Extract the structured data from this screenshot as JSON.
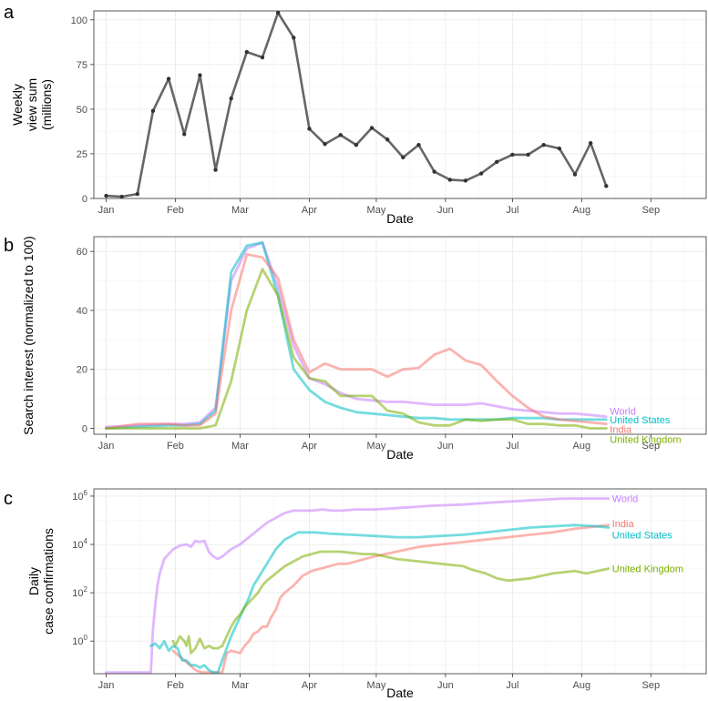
{
  "chart_data": [
    {
      "panel_label": "a",
      "type": "line",
      "title": "",
      "xlabel": "Date",
      "ylabel": [
        "Weekly",
        "view sum",
        "(millions)"
      ],
      "x_ticks": [
        "Jan",
        "Feb",
        "Mar",
        "Apr",
        "May",
        "Jun",
        "Jul",
        "Aug",
        "Sep"
      ],
      "y_ticks": [
        "0",
        "25",
        "50",
        "75",
        "100"
      ],
      "ylim": [
        0,
        105
      ],
      "x_unit": "days since Jan 1",
      "grid": true,
      "series": [
        {
          "name": "Weekly view sum",
          "color": "#666666",
          "x": [
            0,
            7,
            14,
            21,
            28,
            35,
            42,
            49,
            56,
            63,
            70,
            77,
            84,
            91,
            98,
            105,
            112,
            119,
            126,
            133,
            140,
            147,
            154,
            161,
            168,
            175,
            182,
            189,
            196,
            203,
            210,
            217,
            224
          ],
          "y": [
            1.5,
            1,
            2.5,
            49,
            67,
            36,
            69,
            16,
            56,
            82,
            79,
            104,
            90,
            39,
            30.5,
            35.5,
            30,
            39.5,
            33,
            23,
            30,
            15,
            10.5,
            10,
            14,
            20.5,
            24.5,
            24.5,
            30,
            28,
            13.5,
            31,
            7
          ]
        }
      ]
    },
    {
      "panel_label": "b",
      "type": "line",
      "title": "",
      "xlabel": "Date",
      "ylabel": "Search interest (normalized to 100)",
      "x_ticks": [
        "Jan",
        "Feb",
        "Mar",
        "Apr",
        "May",
        "Jun",
        "Jul",
        "Aug",
        "Sep"
      ],
      "y_ticks": [
        "0",
        "20",
        "40",
        "60"
      ],
      "ylim": [
        -2,
        65
      ],
      "x_unit": "days since Jan 1",
      "grid": true,
      "legend": "labels at line ends",
      "series": [
        {
          "name": "World",
          "color": "#C77CFF",
          "x": [
            0,
            14,
            28,
            35,
            42,
            49,
            56,
            63,
            70,
            77,
            84,
            91,
            98,
            105,
            112,
            119,
            126,
            133,
            140,
            147,
            154,
            161,
            168,
            175,
            182,
            189,
            196,
            203,
            210,
            217,
            224
          ],
          "y": [
            0.5,
            1,
            1.5,
            1.5,
            2,
            7,
            50,
            61,
            63,
            48,
            28,
            17,
            15,
            12,
            10,
            9.5,
            9,
            9,
            8.5,
            8,
            8,
            8,
            8.5,
            7.5,
            6.5,
            6,
            5.5,
            5,
            5,
            4.5,
            4
          ]
        },
        {
          "name": "United States",
          "color": "#00BFC4",
          "x": [
            0,
            14,
            28,
            35,
            42,
            49,
            56,
            63,
            70,
            77,
            84,
            91,
            98,
            105,
            112,
            119,
            126,
            133,
            140,
            147,
            154,
            161,
            168,
            175,
            182,
            189,
            196,
            203,
            210,
            217,
            224
          ],
          "y": [
            0,
            0.5,
            1,
            1,
            1.5,
            6,
            53,
            62,
            63,
            45,
            20,
            13,
            9,
            7,
            5.5,
            5,
            4.5,
            4,
            3.5,
            3.5,
            3,
            3,
            3,
            3,
            3.5,
            3.5,
            3.5,
            3,
            3,
            3,
            3
          ]
        },
        {
          "name": "India",
          "color": "#F8766D",
          "x": [
            0,
            14,
            28,
            35,
            42,
            49,
            56,
            63,
            70,
            77,
            84,
            91,
            98,
            105,
            112,
            119,
            126,
            133,
            140,
            147,
            154,
            161,
            168,
            175,
            182,
            189,
            196,
            203,
            210,
            217,
            224
          ],
          "y": [
            0,
            1.5,
            1.5,
            1,
            1,
            5,
            40,
            59,
            58,
            51,
            30,
            19,
            22,
            20,
            20,
            20,
            17.5,
            20,
            20.5,
            25,
            27,
            23,
            21.5,
            16,
            11,
            7,
            4,
            3,
            2.5,
            2,
            1.5
          ]
        },
        {
          "name": "United Kingdom",
          "color": "#7CAE00",
          "x": [
            0,
            14,
            28,
            35,
            42,
            49,
            56,
            63,
            70,
            77,
            84,
            91,
            98,
            105,
            112,
            119,
            126,
            133,
            140,
            147,
            154,
            161,
            168,
            175,
            182,
            189,
            196,
            203,
            210,
            217,
            224
          ],
          "y": [
            0,
            0,
            0,
            0,
            0,
            1,
            16,
            40,
            54,
            45,
            24,
            17,
            16,
            11,
            11,
            11,
            6,
            5,
            2,
            1,
            1,
            3,
            2.5,
            3,
            3,
            1.5,
            1.5,
            1,
            1,
            0,
            0
          ]
        }
      ]
    },
    {
      "panel_label": "c",
      "type": "line",
      "title": "",
      "xlabel": "Date",
      "ylabel": [
        "Daily",
        "case confirmations"
      ],
      "y_scale": "log10",
      "x_ticks": [
        "Jan",
        "Feb",
        "Mar",
        "Apr",
        "May",
        "Jun",
        "Jul",
        "Aug",
        "Sep"
      ],
      "y_ticks": [
        {
          "base": "10",
          "exp": "0"
        },
        {
          "base": "10",
          "exp": "2"
        },
        {
          "base": "10",
          "exp": "4"
        },
        {
          "base": "10",
          "exp": "6"
        }
      ],
      "ylim_log10": [
        -1.35,
        6.3
      ],
      "x_unit": "days since Jan 1",
      "grid": true,
      "legend": "labels at line ends",
      "series": [
        {
          "name": "World",
          "color": "#C77CFF",
          "x": [
            0,
            20,
            21,
            22,
            23,
            24,
            26,
            28,
            30,
            33,
            36,
            38,
            40,
            42,
            44,
            46,
            48,
            50,
            52,
            56,
            60,
            64,
            68,
            72,
            76,
            80,
            84,
            88,
            92,
            97,
            101,
            105,
            112,
            120,
            130,
            145,
            160,
            175,
            185,
            195,
            205,
            215,
            225
          ],
          "y_log10": [
            -1.3,
            -1.3,
            0.5,
            1.5,
            2.3,
            2.8,
            3.4,
            3.6,
            3.8,
            3.95,
            4,
            3.9,
            4.15,
            4.1,
            4.15,
            3.7,
            3.5,
            3.4,
            3.5,
            3.8,
            4,
            4.3,
            4.6,
            4.9,
            5.1,
            5.3,
            5.4,
            5.4,
            5.4,
            5.45,
            5.4,
            5.4,
            5.45,
            5.45,
            5.5,
            5.6,
            5.65,
            5.75,
            5.8,
            5.85,
            5.9,
            5.9,
            5.9
          ]
        },
        {
          "name": "India",
          "color": "#F8766D",
          "x": [
            30,
            35,
            40,
            43,
            48,
            52,
            54,
            56,
            60,
            62,
            64,
            66,
            68,
            70,
            72,
            74,
            76,
            78,
            80,
            84,
            88,
            92,
            96,
            100,
            104,
            108,
            112,
            116,
            120,
            125,
            130,
            140,
            150,
            160,
            170,
            180,
            190,
            200,
            210,
            220,
            225
          ],
          "y_log10": [
            -0.4,
            -0.8,
            -1.2,
            -1.3,
            -1.3,
            -1.3,
            -0.5,
            -0.4,
            -0.5,
            -0.2,
            0,
            0.3,
            0.4,
            0.6,
            0.6,
            1,
            1.3,
            1.8,
            2,
            2.3,
            2.7,
            2.9,
            3,
            3.1,
            3.2,
            3.2,
            3.3,
            3.4,
            3.5,
            3.6,
            3.7,
            3.9,
            4,
            4.1,
            4.2,
            4.3,
            4.4,
            4.5,
            4.65,
            4.75,
            4.8
          ]
        },
        {
          "name": "United States",
          "color": "#00BFC4",
          "x": [
            20,
            22,
            24,
            26,
            28,
            30,
            32,
            34,
            36,
            38,
            40,
            42,
            44,
            46,
            48,
            50,
            52,
            54,
            56,
            58,
            60,
            62,
            64,
            66,
            68,
            70,
            72,
            74,
            76,
            78,
            80,
            82,
            84,
            86,
            88,
            90,
            94,
            100,
            110,
            120,
            130,
            140,
            150,
            160,
            170,
            180,
            190,
            200,
            210,
            220,
            225
          ],
          "y_log10": [
            -0.2,
            -0.1,
            -0.3,
            0,
            -0.4,
            -0.2,
            -0.3,
            -0.8,
            -0.8,
            -1,
            -1,
            -1.1,
            -1,
            -1.2,
            -1.3,
            -1.3,
            -0.8,
            -0.3,
            0.2,
            0.6,
            1,
            1.4,
            1.8,
            2.3,
            2.6,
            2.9,
            3.2,
            3.5,
            3.8,
            4,
            4.2,
            4.3,
            4.4,
            4.5,
            4.5,
            4.5,
            4.5,
            4.45,
            4.4,
            4.35,
            4.3,
            4.3,
            4.35,
            4.4,
            4.5,
            4.6,
            4.7,
            4.75,
            4.8,
            4.75,
            4.7
          ]
        },
        {
          "name": "United Kingdom",
          "color": "#7CAE00",
          "x": [
            30,
            31,
            32,
            33,
            34,
            35,
            36,
            37,
            38,
            40,
            42,
            44,
            46,
            48,
            50,
            52,
            54,
            56,
            58,
            60,
            62,
            64,
            66,
            68,
            70,
            72,
            76,
            80,
            84,
            88,
            92,
            96,
            100,
            105,
            110,
            115,
            120,
            130,
            140,
            150,
            160,
            164,
            166,
            170,
            175,
            180,
            190,
            200,
            210,
            215,
            220,
            225
          ],
          "y_log10": [
            0,
            -0.2,
            0,
            0.2,
            0.1,
            0,
            -0.2,
            0.2,
            -0.5,
            -0.3,
            0.1,
            -0.3,
            -0.2,
            -0.3,
            -0.3,
            -0.2,
            0.2,
            0.6,
            0.9,
            1.1,
            1.4,
            1.6,
            1.8,
            2,
            2.3,
            2.5,
            2.8,
            3.1,
            3.3,
            3.5,
            3.6,
            3.7,
            3.7,
            3.7,
            3.65,
            3.6,
            3.6,
            3.4,
            3.3,
            3.2,
            3.1,
            2.95,
            2.9,
            2.8,
            2.6,
            2.5,
            2.6,
            2.8,
            2.9,
            2.8,
            2.9,
            3
          ]
        }
      ]
    }
  ]
}
